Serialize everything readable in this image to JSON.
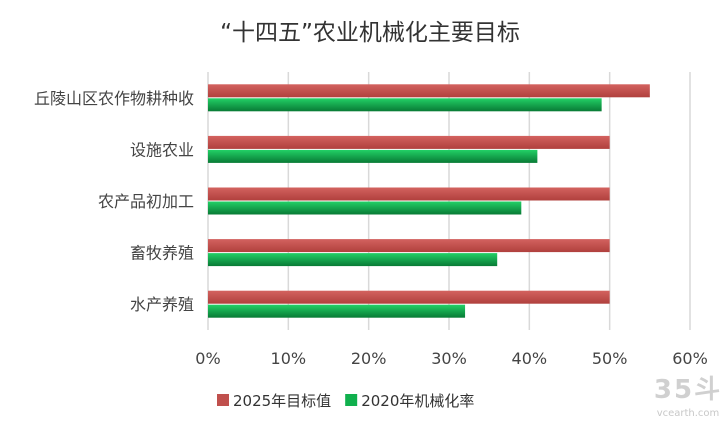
{
  "chart_data": {
    "type": "bar",
    "orientation": "horizontal",
    "title": "“十四五”农业机械化主要目标",
    "categories": [
      "丘陵山区农作物耕种收",
      "设施农业",
      "农产品初加工",
      "畜牧养殖",
      "水产养殖"
    ],
    "series": [
      {
        "name": "2025年目标值",
        "color": "#c0504d",
        "values": [
          55,
          50,
          50,
          50,
          50
        ]
      },
      {
        "name": "2020年机械化率",
        "color": "#10b04d",
        "values": [
          49,
          41,
          39,
          36,
          32
        ]
      }
    ],
    "xlim": [
      0,
      60
    ],
    "xticks": [
      "0%",
      "10%",
      "20%",
      "30%",
      "40%",
      "50%",
      "60%"
    ],
    "grid": true,
    "legend_position": "bottom"
  },
  "watermark": {
    "main": "35斗",
    "sub": "vcearth.com"
  }
}
